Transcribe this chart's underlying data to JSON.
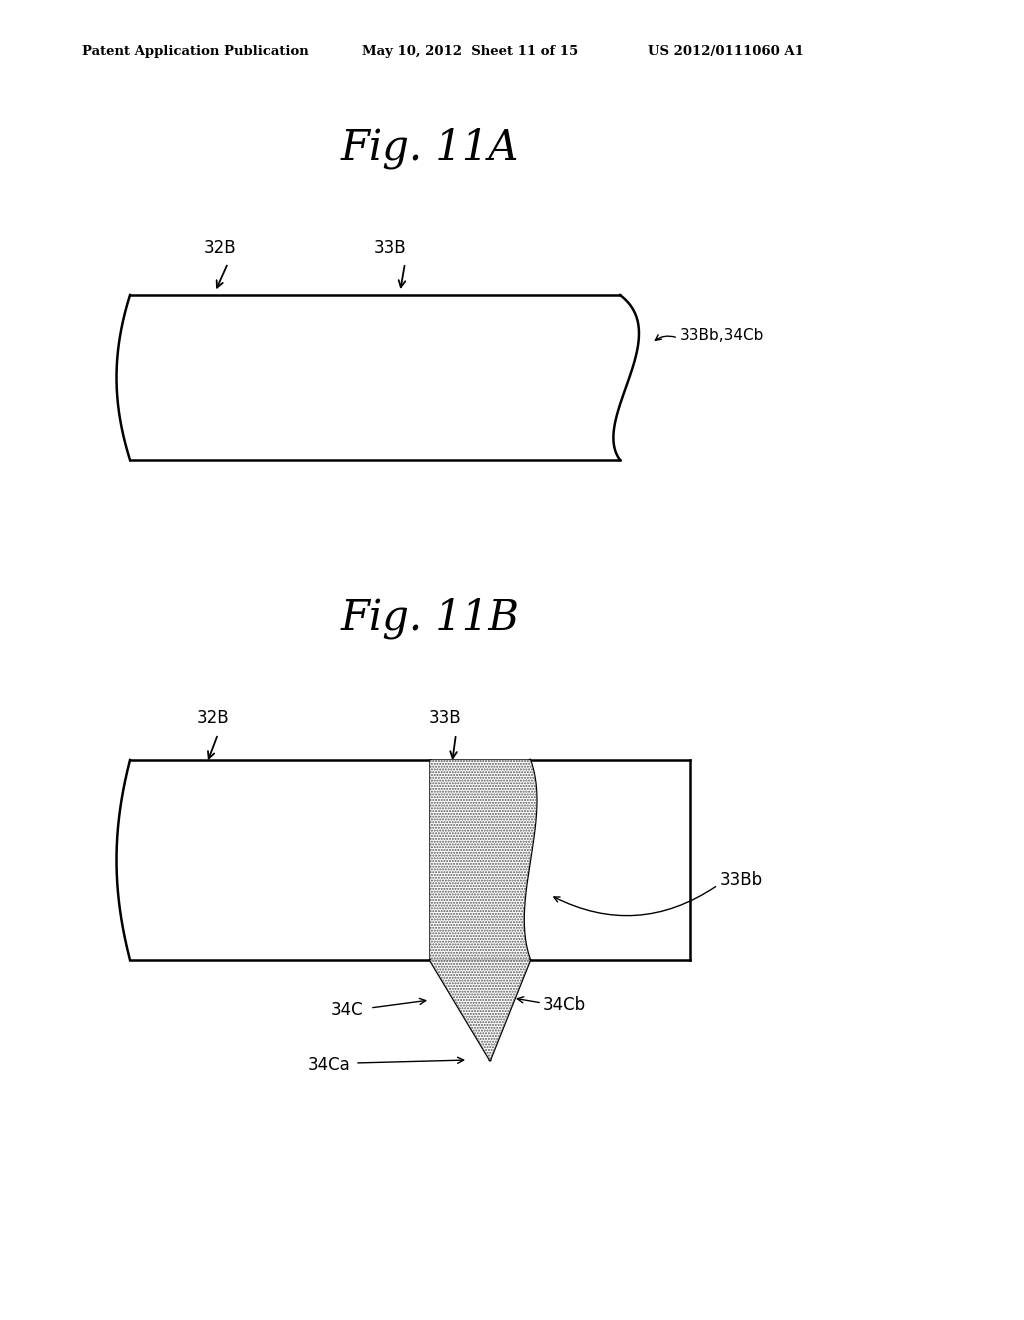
{
  "bg_color": "#ffffff",
  "header_left": "Patent Application Publication",
  "header_mid": "May 10, 2012  Sheet 11 of 15",
  "header_right": "US 2012/0111060 A1",
  "fig11A_title": "Fig. 11A",
  "fig11B_title": "Fig. 11B",
  "label_32B": "32B",
  "label_33B": "33B",
  "label_33Bb_34Cb": "33Bb,34Cb",
  "label_33Bb": "33Bb",
  "label_34C": "34C",
  "label_34Cb": "34Cb",
  "label_34Ca": "34Ca",
  "line_color": "#000000",
  "line_width": 1.8
}
